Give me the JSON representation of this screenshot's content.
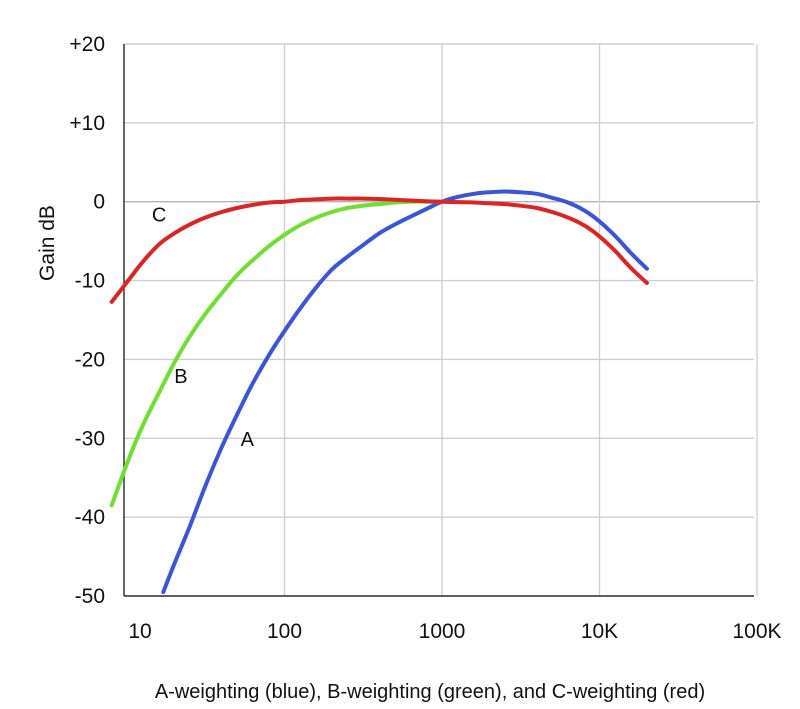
{
  "chart_data": {
    "type": "line",
    "title": "",
    "caption": "A-weighting (blue), B-weighting (green), and C-weighting (red)",
    "xlabel": "",
    "ylabel": "Gain dB",
    "x_scale": "log",
    "xlim": [
      8,
      100000
    ],
    "ylim": [
      -50,
      20
    ],
    "x_ticks": [
      {
        "value": 10,
        "label": "10"
      },
      {
        "value": 100,
        "label": "100"
      },
      {
        "value": 1000,
        "label": "1000"
      },
      {
        "value": 10000,
        "label": "10K"
      },
      {
        "value": 100000,
        "label": "100K"
      }
    ],
    "y_ticks": [
      {
        "value": 20,
        "label": "+20"
      },
      {
        "value": 10,
        "label": "+10"
      },
      {
        "value": 0,
        "label": "0"
      },
      {
        "value": -10,
        "label": "-10"
      },
      {
        "value": -20,
        "label": "-20"
      },
      {
        "value": -30,
        "label": "-30"
      },
      {
        "value": -40,
        "label": "-40"
      },
      {
        "value": -50,
        "label": "-50"
      }
    ],
    "grid": true,
    "series": [
      {
        "name": "A",
        "color": "#3a55d8",
        "label_at": {
          "x": 58,
          "y": -31
        },
        "points": [
          [
            17,
            -49.5
          ],
          [
            20,
            -45.9
          ],
          [
            25,
            -41.2
          ],
          [
            31.5,
            -36.0
          ],
          [
            40,
            -31.1
          ],
          [
            50,
            -27.0
          ],
          [
            63,
            -23.0
          ],
          [
            80,
            -19.4
          ],
          [
            100,
            -16.4
          ],
          [
            125,
            -13.6
          ],
          [
            160,
            -10.8
          ],
          [
            200,
            -8.6
          ],
          [
            250,
            -7.0
          ],
          [
            315,
            -5.5
          ],
          [
            400,
            -4.0
          ],
          [
            500,
            -2.9
          ],
          [
            630,
            -1.9
          ],
          [
            800,
            -0.9
          ],
          [
            1000,
            0.0
          ],
          [
            1250,
            0.6
          ],
          [
            1600,
            1.0
          ],
          [
            2000,
            1.2
          ],
          [
            2500,
            1.3
          ],
          [
            3150,
            1.2
          ],
          [
            4000,
            1.0
          ],
          [
            5000,
            0.5
          ],
          [
            6300,
            -0.1
          ],
          [
            8000,
            -1.1
          ],
          [
            10000,
            -2.5
          ],
          [
            12500,
            -4.3
          ],
          [
            16000,
            -6.6
          ],
          [
            20000,
            -8.5
          ]
        ]
      },
      {
        "name": "B",
        "color": "#6fe030",
        "label_at": {
          "x": 22,
          "y": -23
        },
        "points": [
          [
            8,
            -38.5
          ],
          [
            10,
            -33.2
          ],
          [
            12.5,
            -28.5
          ],
          [
            16,
            -24.2
          ],
          [
            20,
            -20.4
          ],
          [
            25,
            -17.1
          ],
          [
            31.5,
            -14.2
          ],
          [
            40,
            -11.6
          ],
          [
            50,
            -9.3
          ],
          [
            63,
            -7.4
          ],
          [
            80,
            -5.6
          ],
          [
            100,
            -4.2
          ],
          [
            125,
            -3.0
          ],
          [
            160,
            -2.0
          ],
          [
            200,
            -1.3
          ],
          [
            250,
            -0.8
          ],
          [
            315,
            -0.5
          ],
          [
            400,
            -0.3
          ],
          [
            500,
            -0.1
          ],
          [
            630,
            0.0
          ],
          [
            800,
            0.0
          ],
          [
            1000,
            0.0
          ]
        ]
      },
      {
        "name": "C",
        "color": "#dd2424",
        "label_at": {
          "x": 16,
          "y": -2.5
        },
        "points": [
          [
            8,
            -12.7
          ],
          [
            10,
            -10.2
          ],
          [
            12.5,
            -7.7
          ],
          [
            16,
            -5.4
          ],
          [
            20,
            -4.0
          ],
          [
            25,
            -2.9
          ],
          [
            31.5,
            -2.0
          ],
          [
            40,
            -1.3
          ],
          [
            50,
            -0.8
          ],
          [
            63,
            -0.4
          ],
          [
            80,
            -0.1
          ],
          [
            100,
            0.0
          ],
          [
            125,
            0.2
          ],
          [
            160,
            0.3
          ],
          [
            200,
            0.4
          ],
          [
            250,
            0.4
          ],
          [
            315,
            0.4
          ],
          [
            400,
            0.35
          ],
          [
            500,
            0.25
          ],
          [
            630,
            0.15
          ],
          [
            800,
            0.05
          ],
          [
            1000,
            0.0
          ],
          [
            1250,
            -0.05
          ],
          [
            1600,
            -0.1
          ],
          [
            2000,
            -0.2
          ],
          [
            2500,
            -0.3
          ],
          [
            3150,
            -0.5
          ],
          [
            4000,
            -0.8
          ],
          [
            5000,
            -1.3
          ],
          [
            6300,
            -2.0
          ],
          [
            8000,
            -3.0
          ],
          [
            10000,
            -4.4
          ],
          [
            12500,
            -6.2
          ],
          [
            16000,
            -8.5
          ],
          [
            20000,
            -10.3
          ]
        ]
      }
    ]
  }
}
